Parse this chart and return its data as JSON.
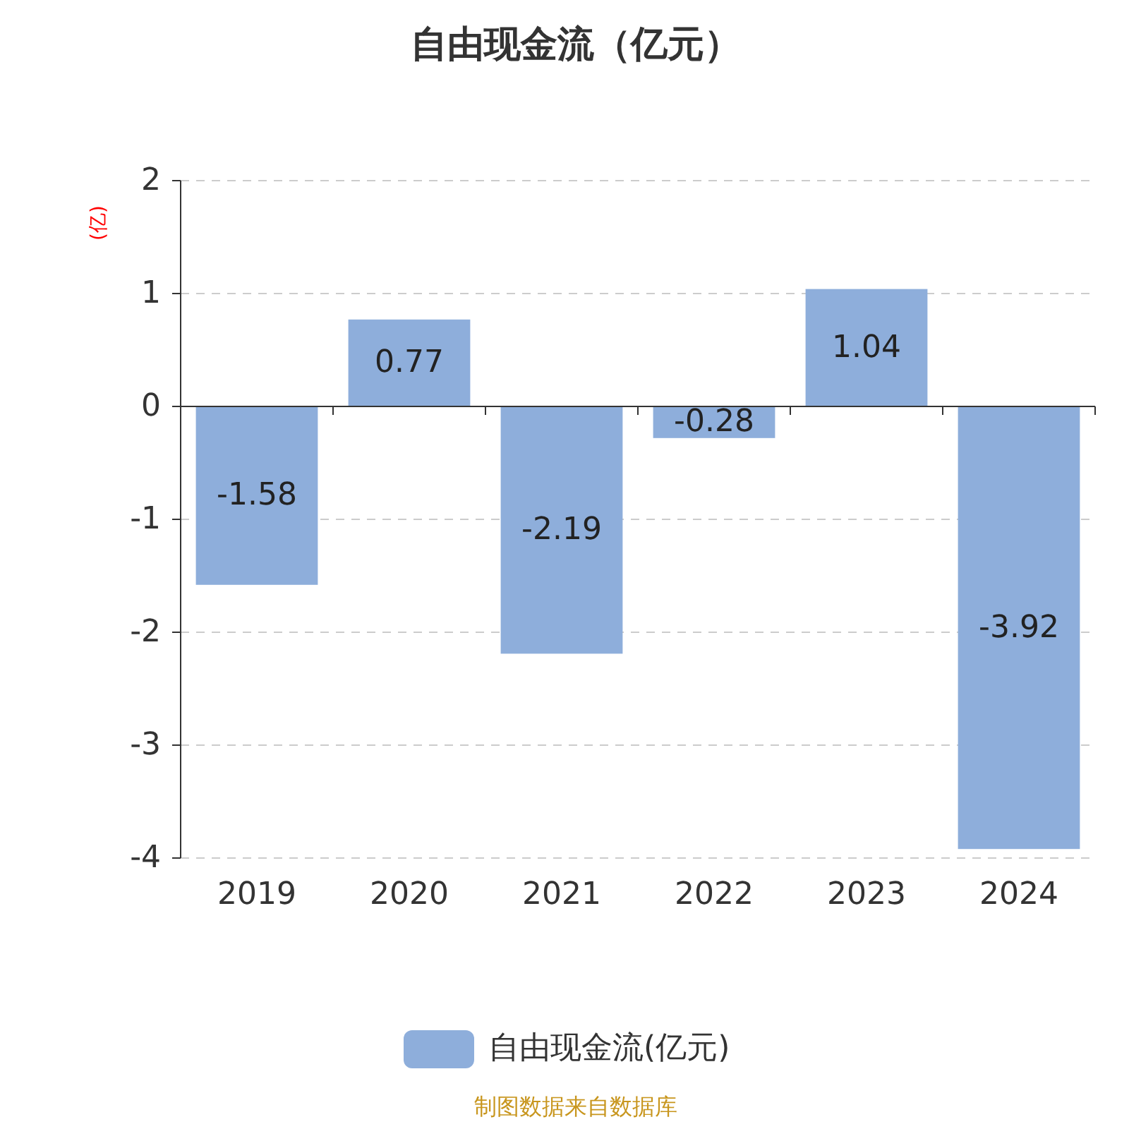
{
  "chart_data": {
    "type": "bar",
    "title": "自由现金流（亿元）",
    "ylabel": "(亿)",
    "categories": [
      "2019",
      "2020",
      "2021",
      "2022",
      "2023",
      "2024"
    ],
    "series": [
      {
        "name": "自由现金流(亿元)",
        "color": "#8eaedb",
        "values": [
          -1.58,
          0.77,
          -2.19,
          -0.28,
          1.04,
          -3.92
        ]
      }
    ],
    "ylim": [
      -4,
      2
    ],
    "yticks": [
      -4,
      -3,
      -2,
      -1,
      0,
      1,
      2
    ],
    "grid": "y",
    "data_labels": true,
    "legend": "bottom",
    "annotations": [
      "制图数据来自数据库"
    ]
  }
}
